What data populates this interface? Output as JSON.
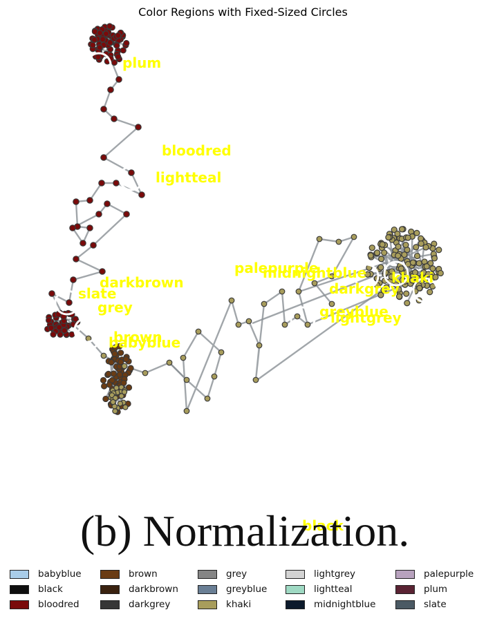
{
  "title": "Color Regions with Fixed-Sized Circles",
  "caption": "(b)  Normalization.",
  "regions": [
    {
      "name": "plum",
      "color": "#5a2333"
    },
    {
      "name": "bloodred",
      "color": "#7a0a0a"
    },
    {
      "name": "lightteal",
      "color": "#9fd9c3"
    },
    {
      "name": "darkbrown",
      "color": "#3a2210"
    },
    {
      "name": "slate",
      "color": "#4b5a64"
    },
    {
      "name": "grey",
      "color": "#858585"
    },
    {
      "name": "brown",
      "color": "#6a3c14"
    },
    {
      "name": "babyblue",
      "color": "#a9cde9"
    },
    {
      "name": "palepurple",
      "color": "#b8a2be"
    },
    {
      "name": "midnightblue",
      "color": "#0c1a2c"
    },
    {
      "name": "darkgrey",
      "color": "#363636"
    },
    {
      "name": "khaki",
      "color": "#a89d5c"
    },
    {
      "name": "greyblue",
      "color": "#6a7f95"
    },
    {
      "name": "lightgrey",
      "color": "#d3d3d3"
    },
    {
      "name": "black",
      "color": "#0f0f0f"
    }
  ],
  "legend": [
    {
      "label": "babyblue",
      "color": "#a9cde9"
    },
    {
      "label": "brown",
      "color": "#6a3c14"
    },
    {
      "label": "grey",
      "color": "#858585"
    },
    {
      "label": "lightgrey",
      "color": "#d3d3d3"
    },
    {
      "label": "palepurple",
      "color": "#b8a2be"
    },
    {
      "label": "black",
      "color": "#0f0f0f"
    },
    {
      "label": "darkbrown",
      "color": "#3a2210"
    },
    {
      "label": "greyblue",
      "color": "#6a7f95"
    },
    {
      "label": "lightteal",
      "color": "#9fd9c3"
    },
    {
      "label": "plum",
      "color": "#5a2333"
    },
    {
      "label": "bloodred",
      "color": "#7a0a0a"
    },
    {
      "label": "darkgrey",
      "color": "#363636"
    },
    {
      "label": "khaki",
      "color": "#a89d5c"
    },
    {
      "label": "midnightblue",
      "color": "#0c1a2c"
    },
    {
      "label": "slate",
      "color": "#4b5a64"
    }
  ]
}
